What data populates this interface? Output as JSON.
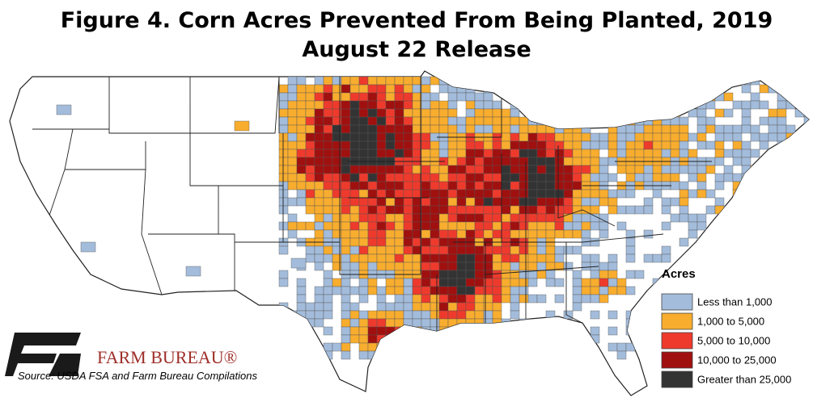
{
  "title": {
    "line1": "Figure 4. Corn Acres Prevented From Being Planted, 2019",
    "line2": "August 22 Release"
  },
  "legend": {
    "title": "Acres",
    "items": [
      {
        "label": "Less than 1,000",
        "color": "#a3bcdb"
      },
      {
        "label": "1,000 to 5,000",
        "color": "#f8ad2e"
      },
      {
        "label": "5,000 to 10,000",
        "color": "#ee3a2c"
      },
      {
        "label": "10,000 to 25,000",
        "color": "#a0100f"
      },
      {
        "label": "Greater than 25,000",
        "color": "#333333"
      }
    ]
  },
  "logo": {
    "text": "FARM BUREAU®"
  },
  "source": "Source: USDA FSA and Farm Bureau Compilations"
}
